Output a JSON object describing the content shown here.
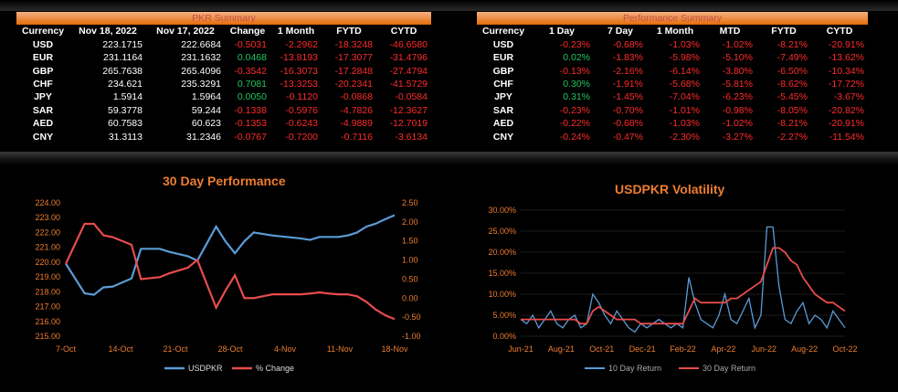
{
  "pkr_summary": {
    "title": "PKR Summary",
    "headers": [
      "Currency",
      "Nov 18, 2022",
      "Nov 17, 2022",
      "Change",
      "1 Month",
      "FYTD",
      "CYTD"
    ],
    "rows": [
      [
        "USD",
        "223.1715",
        "222.6684",
        "-0.5031",
        "-2.2962",
        "-18.3248",
        "-46.6580"
      ],
      [
        "EUR",
        "231.1164",
        "231.1632",
        "0.0468",
        "-13.8193",
        "-17.3077",
        "-31.4796"
      ],
      [
        "GBP",
        "265.7638",
        "265.4096",
        "-0.3542",
        "-16.3073",
        "-17.2848",
        "-27.4794"
      ],
      [
        "CHF",
        "234.621",
        "235.3291",
        "0.7081",
        "-13.3253",
        "-20.2341",
        "-41.5729"
      ],
      [
        "JPY",
        "1.5914",
        "1.5964",
        "0.0050",
        "-0.1120",
        "-0.0868",
        "-0.0584"
      ],
      [
        "SAR",
        "59.3778",
        "59.244",
        "-0.1338",
        "-0.5976",
        "-4.7826",
        "-12.3627"
      ],
      [
        "AED",
        "60.7583",
        "60.623",
        "-0.1353",
        "-0.6243",
        "-4.9889",
        "-12.7019"
      ],
      [
        "CNY",
        "31.3113",
        "31.2346",
        "-0.0767",
        "-0.7200",
        "-0.7116",
        "-3.6134"
      ]
    ]
  },
  "performance_summary": {
    "title": "Performance Summary",
    "headers": [
      "Currency",
      "1 Day",
      "7 Day",
      "1 Month",
      "MTD",
      "FYTD",
      "CYTD"
    ],
    "rows": [
      [
        "USD",
        "-0.23%",
        "-0.68%",
        "-1.03%",
        "-1.02%",
        "-8.21%",
        "-20.91%"
      ],
      [
        "EUR",
        "0.02%",
        "-1.83%",
        "-5.98%",
        "-5.10%",
        "-7.49%",
        "-13.62%"
      ],
      [
        "GBP",
        "-0.13%",
        "-2.16%",
        "-6.14%",
        "-3.80%",
        "-6.50%",
        "-10.34%"
      ],
      [
        "CHF",
        "0.30%",
        "-1.91%",
        "-5.68%",
        "-5.81%",
        "-8.62%",
        "-17.72%"
      ],
      [
        "JPY",
        "0.31%",
        "-1.45%",
        "-7.04%",
        "-6.23%",
        "-5.45%",
        "-3.67%"
      ],
      [
        "SAR",
        "-0.23%",
        "-0.70%",
        "-1.01%",
        "-0.98%",
        "-8.05%",
        "-20.82%"
      ],
      [
        "AED",
        "-0.22%",
        "-0.68%",
        "-1.03%",
        "-1.02%",
        "-8.21%",
        "-20.91%"
      ],
      [
        "CNY",
        "-0.24%",
        "-0.47%",
        "-2.30%",
        "-3.27%",
        "-2.27%",
        "-11.54%"
      ]
    ]
  },
  "colors": {
    "positive": "#22c55e",
    "negative": "#ff2b2b",
    "accent": "#ed7d31",
    "blue": "#5b9bd5",
    "red": "#e84c4c"
  },
  "chart_data": [
    {
      "type": "line",
      "title": "30 Day Performance",
      "x_ticks": [
        "7-Oct",
        "14-Oct",
        "21-Oct",
        "28-Oct",
        "4-Nov",
        "11-Nov",
        "18-Nov"
      ],
      "y_ticks": [
        "224.00",
        "223.00",
        "222.00",
        "221.00",
        "220.00",
        "219.00",
        "218.00",
        "217.00",
        "216.00",
        "215.00"
      ],
      "y2_ticks": [
        "2.50",
        "2.00",
        "1.50",
        "1.00",
        "0.50",
        "0.00",
        "-0.50",
        "-1.00"
      ],
      "ylim": [
        215,
        224
      ],
      "y2lim": [
        -1,
        2.5
      ],
      "series": [
        {
          "name": "USDPKR",
          "axis": "left",
          "x": [
            0,
            2,
            3,
            4,
            5,
            7,
            8,
            10,
            11,
            13,
            14,
            16,
            17,
            18,
            19,
            20,
            21,
            22,
            25,
            26,
            27,
            28,
            29,
            30,
            31,
            32,
            33,
            34,
            35
          ],
          "values": [
            219.9,
            217.9,
            217.8,
            218.3,
            218.35,
            218.9,
            220.9,
            220.9,
            220.7,
            220.4,
            220.1,
            222.4,
            221.4,
            220.6,
            221.4,
            222.0,
            221.9,
            221.8,
            221.6,
            221.5,
            221.7,
            221.7,
            221.7,
            221.8,
            222.0,
            222.4,
            222.6,
            222.9,
            223.17
          ]
        },
        {
          "name": "% Change",
          "axis": "right",
          "x": [
            0,
            2,
            3,
            4,
            5,
            7,
            8,
            10,
            11,
            13,
            14,
            16,
            17,
            18,
            19,
            20,
            21,
            22,
            25,
            26,
            27,
            28,
            29,
            30,
            31,
            32,
            33,
            34,
            35
          ],
          "values": [
            0.9,
            1.95,
            1.95,
            1.65,
            1.6,
            1.4,
            0.5,
            0.55,
            0.65,
            0.8,
            1.0,
            -0.25,
            0.2,
            0.6,
            0.0,
            0.0,
            0.05,
            0.1,
            0.1,
            0.12,
            0.15,
            0.12,
            0.1,
            0.1,
            0.05,
            -0.1,
            -0.3,
            -0.45,
            -0.55
          ]
        }
      ]
    },
    {
      "type": "line",
      "title": "USDPKR Volatility",
      "x_ticks": [
        "Jun-21",
        "Aug-21",
        "Oct-21",
        "Dec-21",
        "Feb-22",
        "Apr-22",
        "Jun-22",
        "Aug-22",
        "Oct-22"
      ],
      "y_ticks": [
        "30.00%",
        "25.00%",
        "20.00%",
        "15.00%",
        "10.00%",
        "5.00%",
        "0.00%"
      ],
      "ylim": [
        0,
        30
      ],
      "series": [
        {
          "name": "10 Day Return",
          "values": [
            4,
            3,
            5,
            2,
            4,
            6,
            3,
            2,
            4,
            5,
            2,
            3,
            10,
            8,
            5,
            3,
            6,
            4,
            2,
            1,
            3,
            2,
            3,
            4,
            3,
            2,
            3,
            2,
            14,
            8,
            4,
            3,
            2,
            5,
            10,
            4,
            3,
            6,
            9,
            2,
            5,
            26,
            26,
            12,
            4,
            3,
            6,
            8,
            3,
            5,
            4,
            2,
            6,
            4,
            2
          ]
        },
        {
          "name": "30 Day Return",
          "values": [
            4,
            4,
            4,
            4,
            4,
            4,
            4,
            4,
            4,
            4,
            3,
            3,
            6,
            7,
            6,
            5,
            4,
            4,
            4,
            4,
            3,
            3,
            3,
            3,
            3,
            3,
            3,
            3,
            6,
            9,
            8,
            8,
            8,
            8,
            8,
            9,
            9,
            10,
            11,
            12,
            13,
            17,
            21,
            21,
            20,
            18,
            17,
            14,
            12,
            10,
            9,
            8,
            8,
            7,
            6
          ]
        }
      ]
    }
  ]
}
